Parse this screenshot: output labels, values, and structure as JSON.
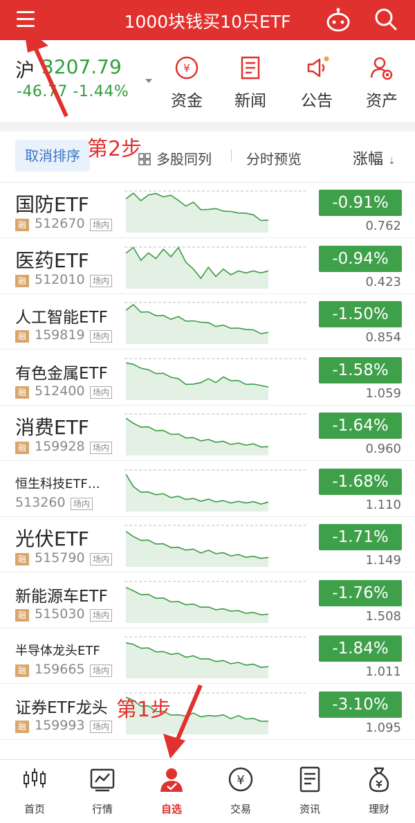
{
  "header": {
    "title": "1000块钱买10只ETF"
  },
  "index": {
    "name": "沪",
    "value": "3207.79",
    "change": "-46.77  -1.44%"
  },
  "quick_actions": [
    {
      "label": "资金",
      "icon": "yen-coin-icon"
    },
    {
      "label": "新闻",
      "icon": "news-icon"
    },
    {
      "label": "公告",
      "icon": "megaphone-icon"
    },
    {
      "label": "资产",
      "icon": "user-asset-icon"
    }
  ],
  "toolbar": {
    "cancel_sort": "取消排序",
    "multi_stock": "多股同列",
    "preview": "分时预览",
    "sort_column": "涨幅",
    "sort_arrow": "⇣"
  },
  "annotations": {
    "step2": "第2步",
    "step1": "第1步"
  },
  "stocks": [
    {
      "name": "国防ETF",
      "rong": "融",
      "code": "512670",
      "market": "场内",
      "pct": "-0.91%",
      "price": "0.762",
      "size": "big"
    },
    {
      "name": "医药ETF",
      "rong": "融",
      "code": "512010",
      "market": "场内",
      "pct": "-0.94%",
      "price": "0.423",
      "size": "big"
    },
    {
      "name": "人工智能ETF",
      "rong": "融",
      "code": "159819",
      "market": "场内",
      "pct": "-1.50%",
      "price": "0.854",
      "size": "mid"
    },
    {
      "name": "有色金属ETF",
      "rong": "融",
      "code": "512400",
      "market": "场内",
      "pct": "-1.58%",
      "price": "1.059",
      "size": "mid"
    },
    {
      "name": "消费ETF",
      "rong": "融",
      "code": "159928",
      "market": "场内",
      "pct": "-1.64%",
      "price": "0.960",
      "size": "big"
    },
    {
      "name": "恒生科技ETF…",
      "rong": "",
      "code": "513260",
      "market": "场内",
      "pct": "-1.68%",
      "price": "1.110",
      "size": "small"
    },
    {
      "name": "光伏ETF",
      "rong": "融",
      "code": "515790",
      "market": "场内",
      "pct": "-1.71%",
      "price": "1.149",
      "size": "big"
    },
    {
      "name": "新能源车ETF",
      "rong": "融",
      "code": "515030",
      "market": "场内",
      "pct": "-1.76%",
      "price": "1.508",
      "size": "mid"
    },
    {
      "name": "半导体龙头ETF",
      "rong": "融",
      "code": "159665",
      "market": "场内",
      "pct": "-1.84%",
      "price": "1.011",
      "size": "small"
    },
    {
      "name": "证券ETF龙头",
      "rong": "融",
      "code": "159993",
      "market": "场内",
      "pct": "-3.10%",
      "price": "1.095",
      "size": "mid"
    }
  ],
  "tabs": [
    {
      "label": "首页",
      "icon": "candlestick-icon",
      "active": false
    },
    {
      "label": "行情",
      "icon": "market-chart-icon",
      "active": false
    },
    {
      "label": "自选",
      "icon": "watchlist-user-icon",
      "active": true
    },
    {
      "label": "交易",
      "icon": "yen-trade-icon",
      "active": false
    },
    {
      "label": "资讯",
      "icon": "news-doc-icon",
      "active": false
    },
    {
      "label": "理财",
      "icon": "money-bag-icon",
      "active": false
    }
  ],
  "colors": {
    "brand_red": "#e0312e",
    "down_green": "#3fa04a",
    "line_green": "#3a9a44"
  }
}
